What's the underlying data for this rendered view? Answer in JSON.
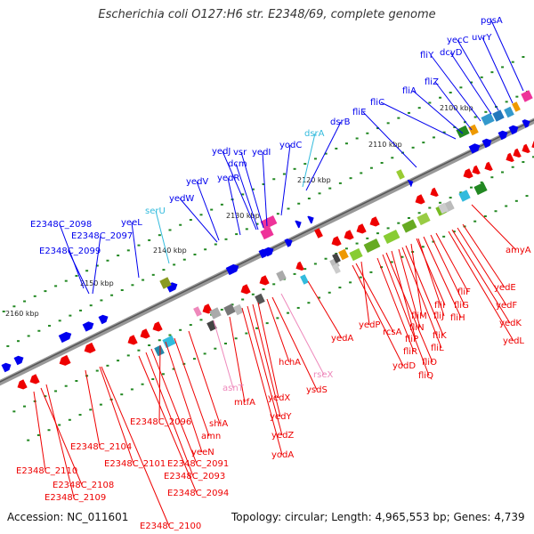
{
  "header": {
    "title": "Escherichia coli O127:H6 str. E2348/69, complete genome"
  },
  "footer": {
    "accession": "Accession: NC_011601",
    "summary": "Topology: circular; Length: 4,965,553 bp; Genes: 4,739"
  },
  "colors": {
    "forward_strand": "#0000ee",
    "reverse_strand": "#ee0000",
    "rna": "#33bbdd",
    "pseudo": "#ee88bb",
    "backbone": "#888888",
    "scale": "#228822"
  },
  "scale_labels": [
    "2100 kbp",
    "2110 kbp",
    "2120 kbp",
    "2130 kbp",
    "2140 kbp",
    "2150 kbp",
    "2160 kbp"
  ],
  "forward_labels": [
    "pgsA",
    "uvrY",
    "yecC",
    "dcyD",
    "fliY",
    "fliZ",
    "fliA",
    "fliC",
    "fliE",
    "dsrB",
    "dsrA",
    "yodC",
    "yedI",
    "vsr",
    "yedJ",
    "dcm",
    "yedR",
    "yedV",
    "yedW",
    "serU",
    "yeeL",
    "E2348C_2098",
    "E2348C_2097",
    "E2348C_2099"
  ],
  "reverse_labels": [
    "amyA",
    "yedE",
    "yedF",
    "yedK",
    "yedL",
    "fliF",
    "fliG",
    "fliH",
    "fliJ",
    "fliI",
    "fliM",
    "fliK",
    "fliL",
    "fliN",
    "fliP",
    "fliO",
    "fliQ",
    "fliR",
    "yedP",
    "rcsA",
    "yodD",
    "yedA",
    "rseX",
    "ysdS",
    "hchA",
    "yedX",
    "yedY",
    "yedZ",
    "yodA",
    "mtfA",
    "asnT",
    "shiA",
    "amn",
    "yeeN",
    "E2348C_2096",
    "E2348C_2091",
    "E2348C_2093",
    "E2348C_2094",
    "E2348C_2101",
    "E2348C_2104",
    "E2348C_2110",
    "E2348C_2108",
    "E2348C_2109",
    "E2348C_2100"
  ]
}
